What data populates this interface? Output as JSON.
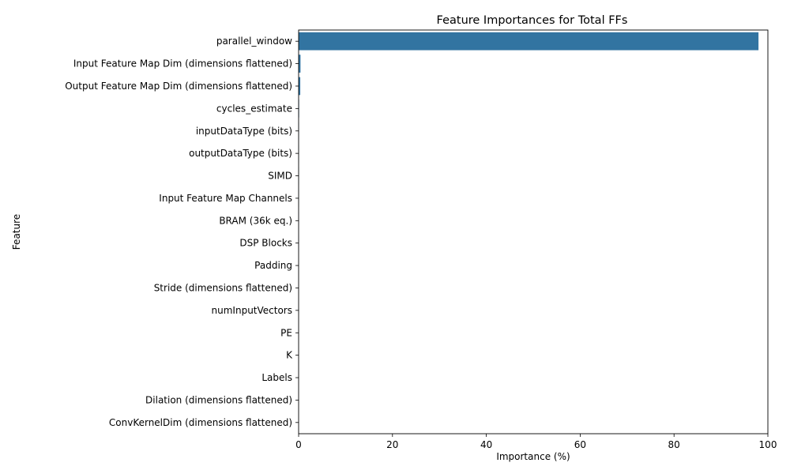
{
  "chart_data": {
    "type": "bar",
    "orientation": "horizontal",
    "title": "Feature Importances for Total FFs",
    "xlabel": "Importance (%)",
    "ylabel": "Feature",
    "xlim": [
      0,
      100
    ],
    "xticks": [
      0,
      20,
      40,
      60,
      80,
      100
    ],
    "grid": false,
    "bar_color": "#3274a1",
    "categories": [
      "parallel_window",
      "Input Feature Map Dim (dimensions flattened)",
      "Output Feature Map Dim (dimensions flattened)",
      "cycles_estimate",
      "inputDataType (bits)",
      "outputDataType (bits)",
      "SIMD",
      "Input Feature Map Channels",
      "BRAM (36k eq.)",
      "DSP Blocks",
      "Padding",
      "Stride (dimensions flattened)",
      "numInputVectors",
      "PE",
      "K",
      "Labels",
      "Dilation (dimensions flattened)",
      "ConvKernelDim (dimensions flattened)"
    ],
    "values": [
      98.0,
      0.4,
      0.35,
      0.1,
      0.05,
      0.04,
      0.03,
      0.03,
      0.02,
      0.02,
      0.01,
      0.01,
      0.01,
      0.01,
      0.0,
      0.0,
      0.0,
      0.0
    ]
  }
}
